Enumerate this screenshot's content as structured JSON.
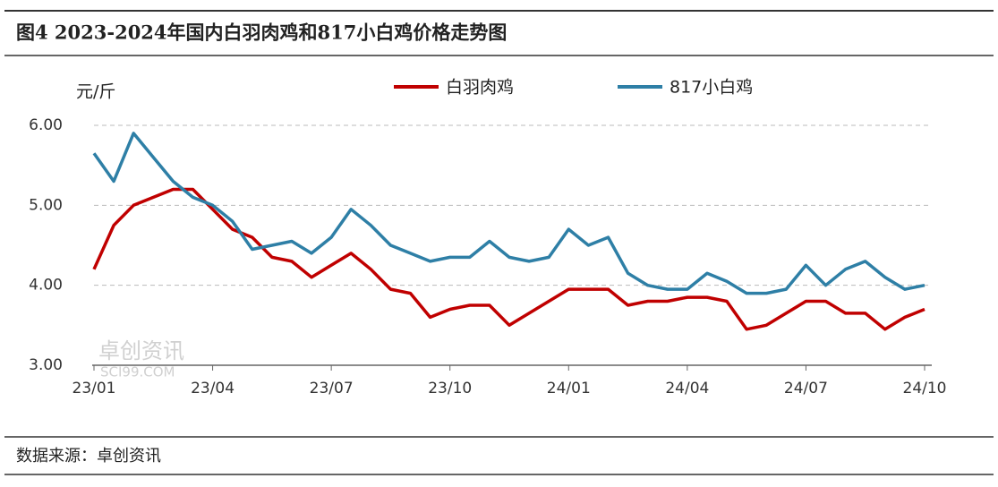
{
  "chart_data": {
    "type": "line",
    "title": "图4 2023-2024年国内白羽肉鸡和817小白鸡价格走势图",
    "y_label": "元/斤",
    "source": "数据来源：卓创资讯",
    "watermark": "卓创资讯",
    "watermark_sub": "SCI99.COM",
    "categories": [
      "23/01",
      null,
      null,
      null,
      null,
      null,
      "23/04",
      null,
      null,
      null,
      null,
      null,
      "23/07",
      null,
      null,
      null,
      null,
      null,
      "23/10",
      null,
      null,
      null,
      null,
      null,
      "24/01",
      null,
      null,
      null,
      null,
      null,
      "24/04",
      null,
      null,
      null,
      null,
      null,
      "24/07",
      null,
      null,
      null,
      null,
      null,
      "24/10"
    ],
    "series": [
      {
        "name": "白羽肉鸡",
        "color": "#c00000",
        "values": [
          4.2,
          4.75,
          5.0,
          5.1,
          5.2,
          5.2,
          4.95,
          4.7,
          4.6,
          4.35,
          4.3,
          4.1,
          4.25,
          4.4,
          4.2,
          3.95,
          3.9,
          3.6,
          3.7,
          3.75,
          3.75,
          3.5,
          3.65,
          3.8,
          3.95,
          3.95,
          3.95,
          3.75,
          3.8,
          3.8,
          3.85,
          3.85,
          3.8,
          3.45,
          3.5,
          3.65,
          3.8,
          3.8,
          3.65,
          3.65,
          3.45,
          3.6,
          3.7
        ]
      },
      {
        "name": "817小白鸡",
        "color": "#2e7fa6",
        "values": [
          5.65,
          5.3,
          5.9,
          5.6,
          5.3,
          5.1,
          5.0,
          4.8,
          4.45,
          4.5,
          4.55,
          4.4,
          4.6,
          4.95,
          4.75,
          4.5,
          4.4,
          4.3,
          4.35,
          4.35,
          4.55,
          4.35,
          4.3,
          4.35,
          4.7,
          4.5,
          4.6,
          4.15,
          4.0,
          3.95,
          3.95,
          4.15,
          4.05,
          3.9,
          3.9,
          3.95,
          4.25,
          4.0,
          4.2,
          4.3,
          4.1,
          3.95,
          4.0
        ]
      }
    ],
    "ylim": [
      3,
      6
    ],
    "yticks": [
      {
        "value": 3,
        "label": "3.00"
      },
      {
        "value": 4,
        "label": "4.00"
      },
      {
        "value": 5,
        "label": "5.00"
      },
      {
        "value": 6,
        "label": "6.00"
      }
    ],
    "grid": true,
    "legend": "top"
  }
}
